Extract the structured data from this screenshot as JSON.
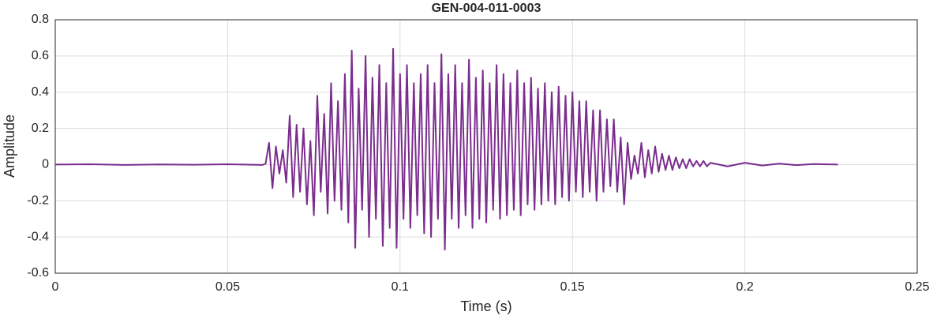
{
  "chart_data": {
    "type": "line",
    "title": "GEN-004-011-0003",
    "x_label": "Time (s)",
    "y_label": "Amplitude",
    "xlim": [
      0,
      0.25
    ],
    "xticks": [
      0,
      0.05,
      0.1,
      0.15,
      0.2,
      0.25
    ],
    "ylim": [
      -0.6,
      0.8
    ],
    "yticks": [
      -0.6,
      -0.4,
      -0.2,
      0,
      0.2,
      0.4,
      0.6,
      0.8
    ],
    "grid": true,
    "series": [
      {
        "color": "#7b2d8e",
        "x": [
          0,
          0.01,
          0.02,
          0.03,
          0.04,
          0.05,
          0.06,
          0.061,
          0.062,
          0.063,
          0.064,
          0.065,
          0.066,
          0.067,
          0.068,
          0.069,
          0.07,
          0.071,
          0.072,
          0.073,
          0.074,
          0.075,
          0.076,
          0.077,
          0.078,
          0.079,
          0.08,
          0.081,
          0.082,
          0.083,
          0.084,
          0.085,
          0.086,
          0.087,
          0.088,
          0.089,
          0.09,
          0.091,
          0.092,
          0.093,
          0.094,
          0.095,
          0.096,
          0.097,
          0.098,
          0.099,
          0.1,
          0.101,
          0.102,
          0.103,
          0.104,
          0.105,
          0.106,
          0.107,
          0.108,
          0.109,
          0.11,
          0.111,
          0.112,
          0.113,
          0.114,
          0.115,
          0.116,
          0.117,
          0.118,
          0.119,
          0.12,
          0.121,
          0.122,
          0.123,
          0.124,
          0.125,
          0.126,
          0.127,
          0.128,
          0.129,
          0.13,
          0.131,
          0.132,
          0.133,
          0.134,
          0.135,
          0.136,
          0.137,
          0.138,
          0.139,
          0.14,
          0.141,
          0.142,
          0.143,
          0.144,
          0.145,
          0.146,
          0.147,
          0.148,
          0.149,
          0.15,
          0.151,
          0.152,
          0.153,
          0.154,
          0.155,
          0.156,
          0.157,
          0.158,
          0.159,
          0.16,
          0.161,
          0.162,
          0.163,
          0.164,
          0.165,
          0.166,
          0.167,
          0.168,
          0.169,
          0.17,
          0.171,
          0.172,
          0.173,
          0.174,
          0.175,
          0.176,
          0.177,
          0.178,
          0.179,
          0.18,
          0.181,
          0.182,
          0.183,
          0.184,
          0.185,
          0.186,
          0.187,
          0.188,
          0.189,
          0.19,
          0.195,
          0.2,
          0.205,
          0.21,
          0.215,
          0.22,
          0.227
        ],
        "values": [
          0,
          0.002,
          -0.002,
          0.001,
          -0.001,
          0.002,
          -0.002,
          0.005,
          0.12,
          -0.13,
          0.1,
          -0.05,
          0.08,
          -0.1,
          0.27,
          -0.18,
          0.22,
          -0.15,
          0.2,
          -0.22,
          0.13,
          -0.28,
          0.38,
          -0.15,
          0.28,
          -0.27,
          0.45,
          -0.2,
          0.35,
          -0.25,
          0.5,
          -0.32,
          0.63,
          -0.46,
          0.42,
          -0.25,
          0.6,
          -0.4,
          0.48,
          -0.3,
          0.55,
          -0.45,
          0.45,
          -0.35,
          0.64,
          -0.46,
          0.5,
          -0.3,
          0.55,
          -0.35,
          0.45,
          -0.28,
          0.5,
          -0.38,
          0.55,
          -0.4,
          0.45,
          -0.3,
          0.61,
          -0.47,
          0.5,
          -0.3,
          0.55,
          -0.35,
          0.45,
          -0.28,
          0.58,
          -0.35,
          0.48,
          -0.3,
          0.52,
          -0.32,
          0.45,
          -0.25,
          0.55,
          -0.3,
          0.5,
          -0.28,
          0.45,
          -0.25,
          0.52,
          -0.28,
          0.45,
          -0.22,
          0.48,
          -0.25,
          0.42,
          -0.22,
          0.45,
          -0.2,
          0.4,
          -0.22,
          0.43,
          -0.18,
          0.38,
          -0.2,
          0.4,
          -0.15,
          0.35,
          -0.18,
          0.35,
          -0.15,
          0.3,
          -0.2,
          0.3,
          -0.15,
          0.25,
          -0.12,
          0.25,
          -0.15,
          0.15,
          -0.22,
          0.12,
          -0.08,
          0.05,
          -0.05,
          0.12,
          -0.07,
          0.08,
          -0.05,
          0.1,
          -0.04,
          0.06,
          -0.03,
          0.05,
          -0.03,
          0.04,
          -0.02,
          0.03,
          -0.02,
          0.03,
          -0.01,
          0.02,
          -0.01,
          0.02,
          -0.01,
          0.01,
          -0.01,
          0.01,
          -0.005,
          0.005,
          -0.003,
          0.003,
          0
        ]
      }
    ]
  }
}
